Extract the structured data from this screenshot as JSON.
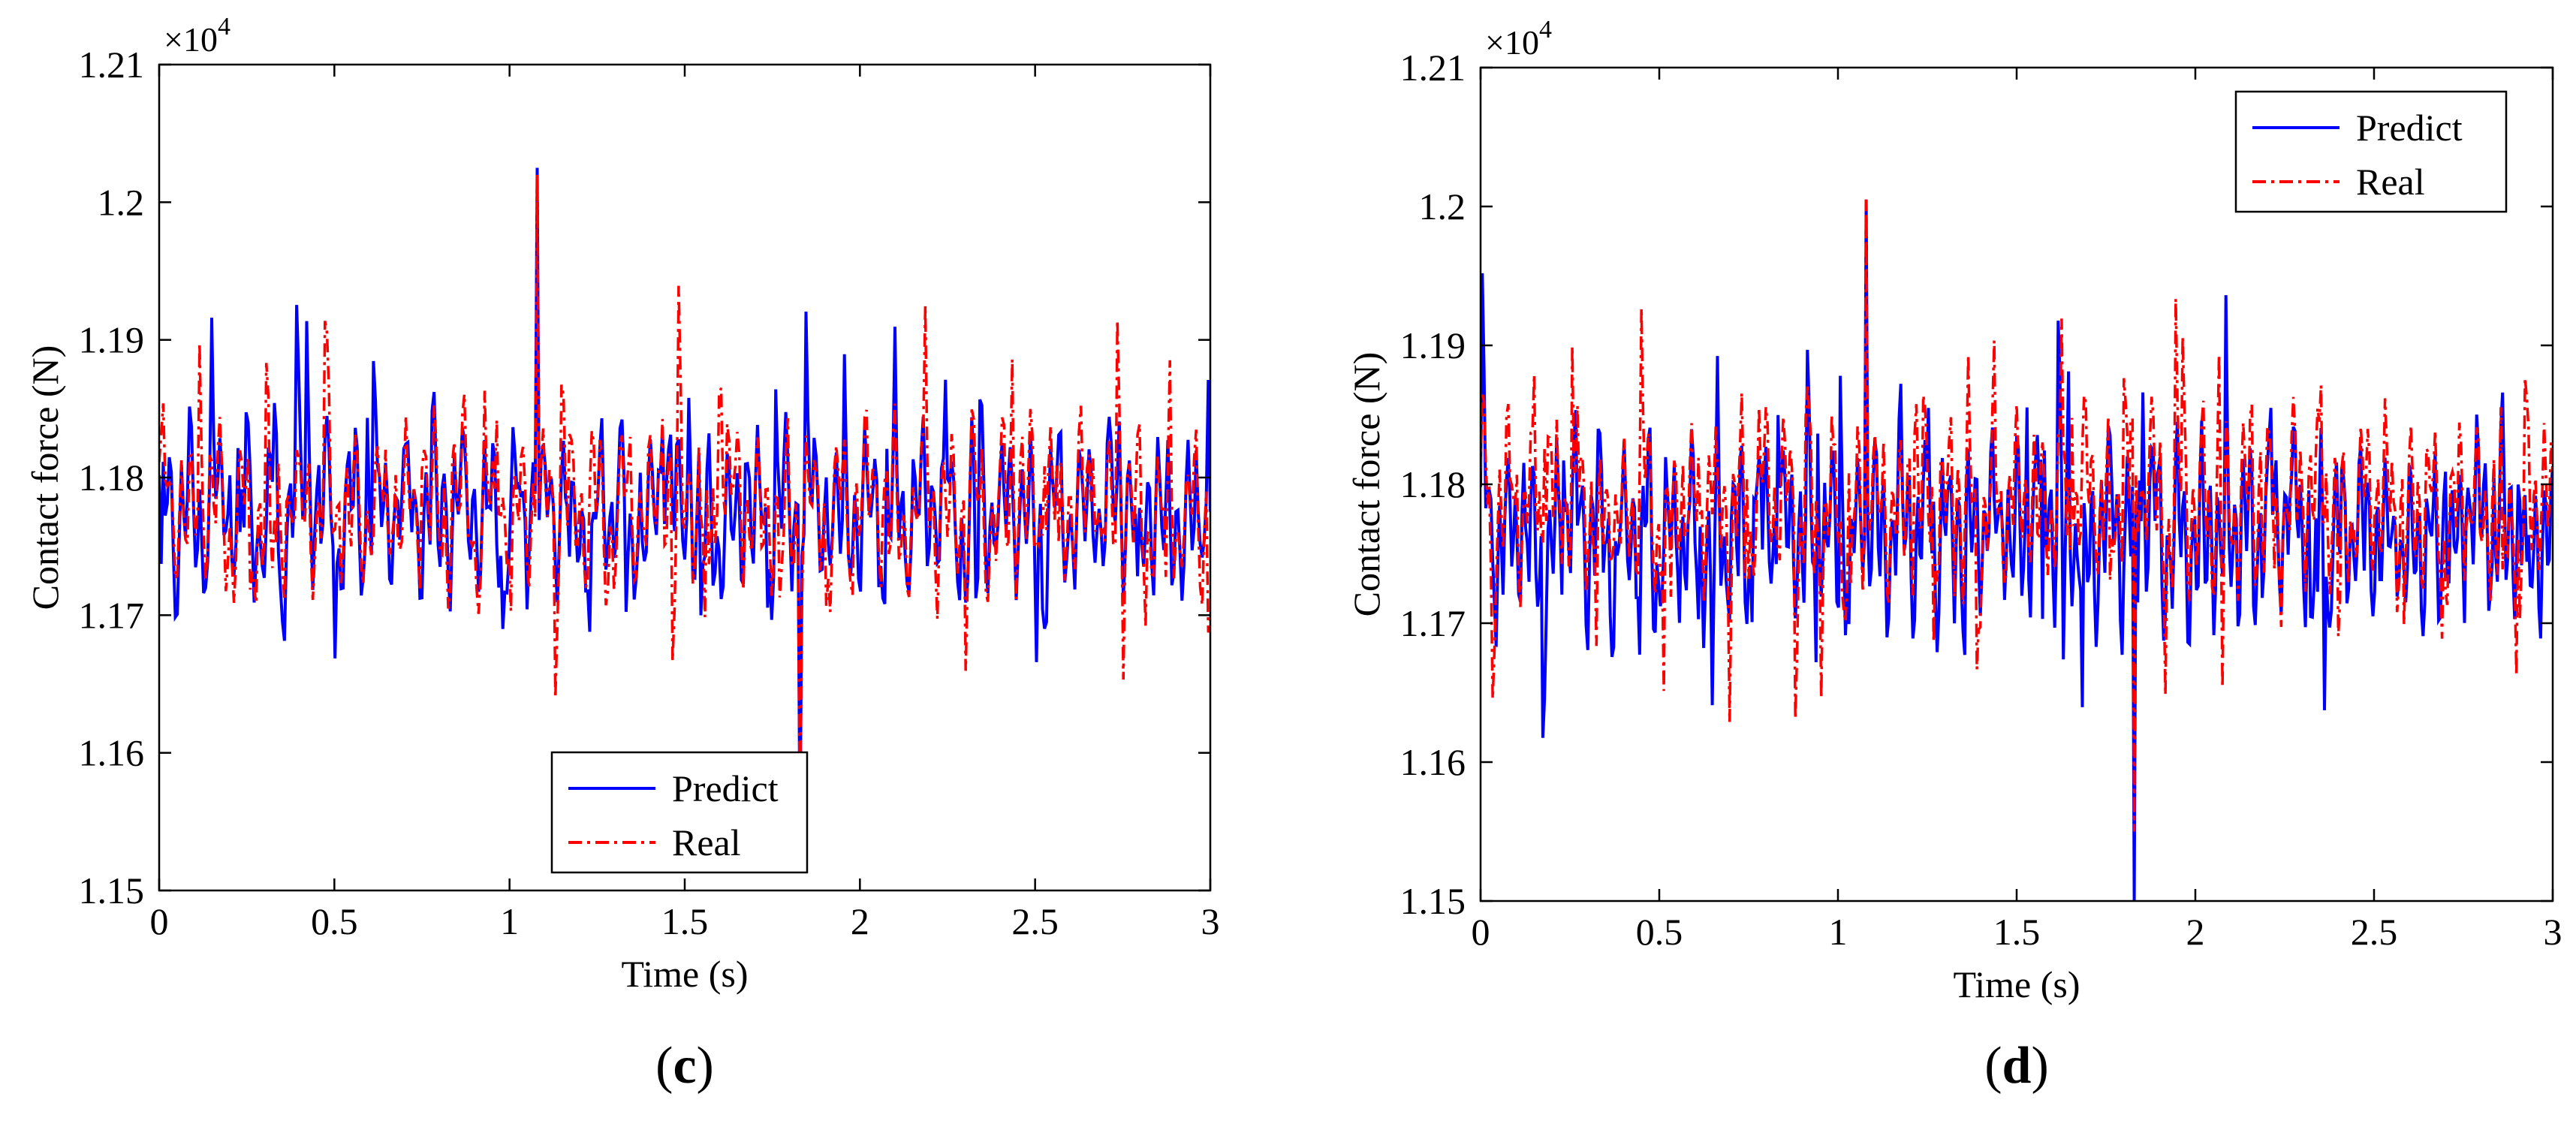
{
  "chart_data": [
    {
      "type": "line",
      "panel_label": "c",
      "panel_label_open": "(",
      "panel_label_close": ")",
      "xlabel": "Time (s)",
      "ylabel": "Contact force (N)",
      "y_multiplier": "×10",
      "y_multiplier_exp": "4",
      "xlim": [
        0,
        3
      ],
      "ylim": [
        1.15,
        1.21
      ],
      "xticks": [
        0,
        0.5,
        1,
        1.5,
        2,
        2.5,
        3
      ],
      "xtick_labels": [
        "0",
        "0.5",
        "1",
        "1.5",
        "2",
        "2.5",
        "3"
      ],
      "yticks": [
        1.15,
        1.16,
        1.17,
        1.18,
        1.19,
        1.2,
        1.21
      ],
      "ytick_labels": [
        "1.15",
        "1.16",
        "1.17",
        "1.18",
        "1.19",
        "1.2",
        "1.21"
      ],
      "legend": {
        "position": "bottom-center",
        "entries": [
          "Predict",
          "Real"
        ]
      },
      "series": [
        {
          "name": "Predict",
          "color": "#0000ff",
          "style": "solid",
          "x_range": [
            0,
            3
          ],
          "samples": 520,
          "mean": 1.1775,
          "amplitude": 0.011,
          "min_approx": 1.1535,
          "max_approx": 1.2025,
          "seed": 7
        },
        {
          "name": "Real",
          "color": "#ff0000",
          "style": "dashdot",
          "x_range": [
            0,
            3
          ],
          "samples": 520,
          "mean": 1.1778,
          "amplitude": 0.011,
          "min_approx": 1.1545,
          "max_approx": 1.202,
          "seed": 7
        }
      ]
    },
    {
      "type": "line",
      "panel_label": "d",
      "panel_label_open": "(",
      "panel_label_close": ")",
      "xlabel": "Time (s)",
      "ylabel": "Contact force (N)",
      "y_multiplier": "×10",
      "y_multiplier_exp": "4",
      "xlim": [
        0,
        3
      ],
      "ylim": [
        1.15,
        1.21
      ],
      "xticks": [
        0,
        0.5,
        1,
        1.5,
        2,
        2.5,
        3
      ],
      "xtick_labels": [
        "0",
        "0.5",
        "1",
        "1.5",
        "2",
        "2.5",
        "3"
      ],
      "yticks": [
        1.15,
        1.16,
        1.17,
        1.18,
        1.19,
        1.2,
        1.21
      ],
      "ytick_labels": [
        "1.15",
        "1.16",
        "1.17",
        "1.18",
        "1.19",
        "1.2",
        "1.21"
      ],
      "legend": {
        "position": "top-right",
        "entries": [
          "Predict",
          "Real"
        ]
      },
      "series": [
        {
          "name": "Predict",
          "color": "#0000ff",
          "style": "solid",
          "x_range": [
            0,
            3
          ],
          "samples": 620,
          "mean": 1.1765,
          "amplitude": 0.012,
          "min_approx": 1.15,
          "max_approx": 1.2005,
          "seed": 13
        },
        {
          "name": "Real",
          "color": "#ff0000",
          "style": "dashdot",
          "x_range": [
            0,
            3
          ],
          "samples": 620,
          "mean": 1.1785,
          "amplitude": 0.011,
          "min_approx": 1.155,
          "max_approx": 1.2005,
          "seed": 13
        }
      ]
    }
  ]
}
